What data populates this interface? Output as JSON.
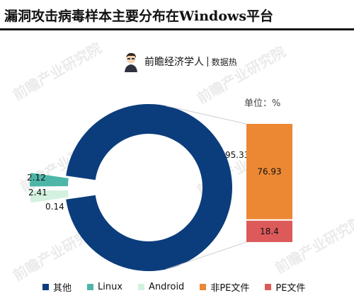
{
  "title": "漏洞攻击病毒样本主要分布在Windows平台",
  "brand": {
    "name": "前瞻经济学人",
    "separator": "|",
    "sub": "数据热"
  },
  "watermark": "前瞻产业研究院",
  "unit_label": "单位：%",
  "colors": {
    "others": "#0b3d7c",
    "linux": "#4db6a9",
    "android": "#d3f1df",
    "non_pe": "#ec8834",
    "pe": "#dd5a5a"
  },
  "chart_data": [
    {
      "type": "pie",
      "donut": true,
      "categories": [
        "其他",
        "Linux",
        "Android"
      ],
      "values": [
        95.33,
        2.41,
        2.12
      ],
      "extra_label": "0.14",
      "labels": [
        "95.33",
        "2.41",
        "2.12"
      ]
    },
    {
      "type": "bar",
      "stacked": true,
      "categories": [
        "非PE文件",
        "PE文件"
      ],
      "values": [
        76.93,
        18.4
      ],
      "labels": [
        "76.93",
        "18.4"
      ]
    }
  ],
  "legend": [
    {
      "label": "其他",
      "color_key": "others"
    },
    {
      "label": "Linux",
      "color_key": "linux"
    },
    {
      "label": "Android",
      "color_key": "android"
    },
    {
      "label": "非PE文件",
      "color_key": "non_pe"
    },
    {
      "label": "PE文件",
      "color_key": "pe"
    }
  ]
}
